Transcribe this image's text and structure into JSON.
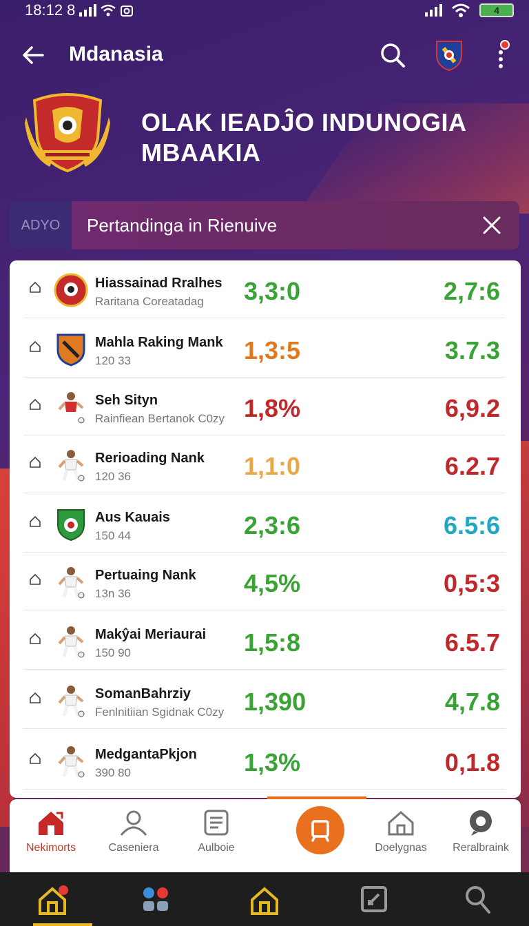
{
  "status_bar": {
    "time": "18:12 8"
  },
  "app_bar": {
    "title": "Mdanasia"
  },
  "hero": {
    "title": "OLAK IEADĴO INDUNOGIA MBAAKIA"
  },
  "banner": {
    "tag": "ADYO",
    "text": "Pertandinga in Rienuive"
  },
  "colors": {
    "green": "#3aa335",
    "orange": "#e07a20",
    "red": "#c0292b",
    "gold": "#e8a84a",
    "teal": "#22a8c0",
    "accent": "#e8701e"
  },
  "rows": [
    {
      "name": "Hiassainad Rralhes",
      "sub": "Raritana Coreatadag",
      "v1": "3,3:0",
      "v2": "2,7:6",
      "c1": "#3aa335",
      "c2": "#3aa335",
      "avatar": "crest-icon"
    },
    {
      "name": "Mahla Raking Mank",
      "sub": "120 33",
      "v1": "1,3:5",
      "v2": "3.7.3",
      "c1": "#e07a20",
      "c2": "#3aa335",
      "avatar": "shield-icon"
    },
    {
      "name": "Seh Sityn",
      "sub": "Rainfiean Bertanok C0zy",
      "v1": "1,8%",
      "v2": "6,9.2",
      "c1": "#c0292b",
      "c2": "#c0292b",
      "avatar": "player-icon"
    },
    {
      "name": "Rerioading Nank",
      "sub": "120 36",
      "v1": "1,1:0",
      "v2": "6.2.7",
      "c1": "#e8a84a",
      "c2": "#c0292b",
      "avatar": "player-icon"
    },
    {
      "name": "Aus Kauais",
      "sub": "150 44",
      "v1": "2,3:6",
      "v2": "6.5:6",
      "c1": "#3aa335",
      "c2": "#22a8c0",
      "avatar": "green-shield-icon"
    },
    {
      "name": "Pertuaing Nank",
      "sub": "13n 36",
      "v1": "4,5%",
      "v2": "0,5:3",
      "c1": "#3aa335",
      "c2": "#c0292b",
      "avatar": "player-icon"
    },
    {
      "name": "Makŷai Meriaurai",
      "sub": "150 90",
      "v1": "1,5:8",
      "v2": "6.5.7",
      "c1": "#3aa335",
      "c2": "#c0292b",
      "avatar": "player-icon"
    },
    {
      "name": "SomanBahrziy",
      "sub": "Fenlnitiian Sgidnak C0zy",
      "v1": "1,390",
      "v2": "4,7.8",
      "c1": "#3aa335",
      "c2": "#3aa335",
      "avatar": "player-icon"
    },
    {
      "name": "MedgantaPkjon",
      "sub": "390 80",
      "v1": "1,3%",
      "v2": "0,1.8",
      "c1": "#3aa335",
      "c2": "#c0292b",
      "avatar": "player-icon"
    }
  ],
  "tabs": [
    {
      "label": "Nekimorts",
      "icon": "home-icon"
    },
    {
      "label": "Caseniera",
      "icon": "user-icon"
    },
    {
      "label": "Aulboie",
      "icon": "document-icon"
    },
    {
      "label": "Doelygnas",
      "icon": "house-outline-icon"
    },
    {
      "label": "Reralbraink",
      "icon": "chat-icon"
    }
  ],
  "bottom_nav": [
    {
      "icon": "home-icon"
    },
    {
      "icon": "apps-icon"
    },
    {
      "icon": "house-outline-icon"
    },
    {
      "icon": "edit-icon"
    },
    {
      "icon": "search-icon"
    }
  ]
}
